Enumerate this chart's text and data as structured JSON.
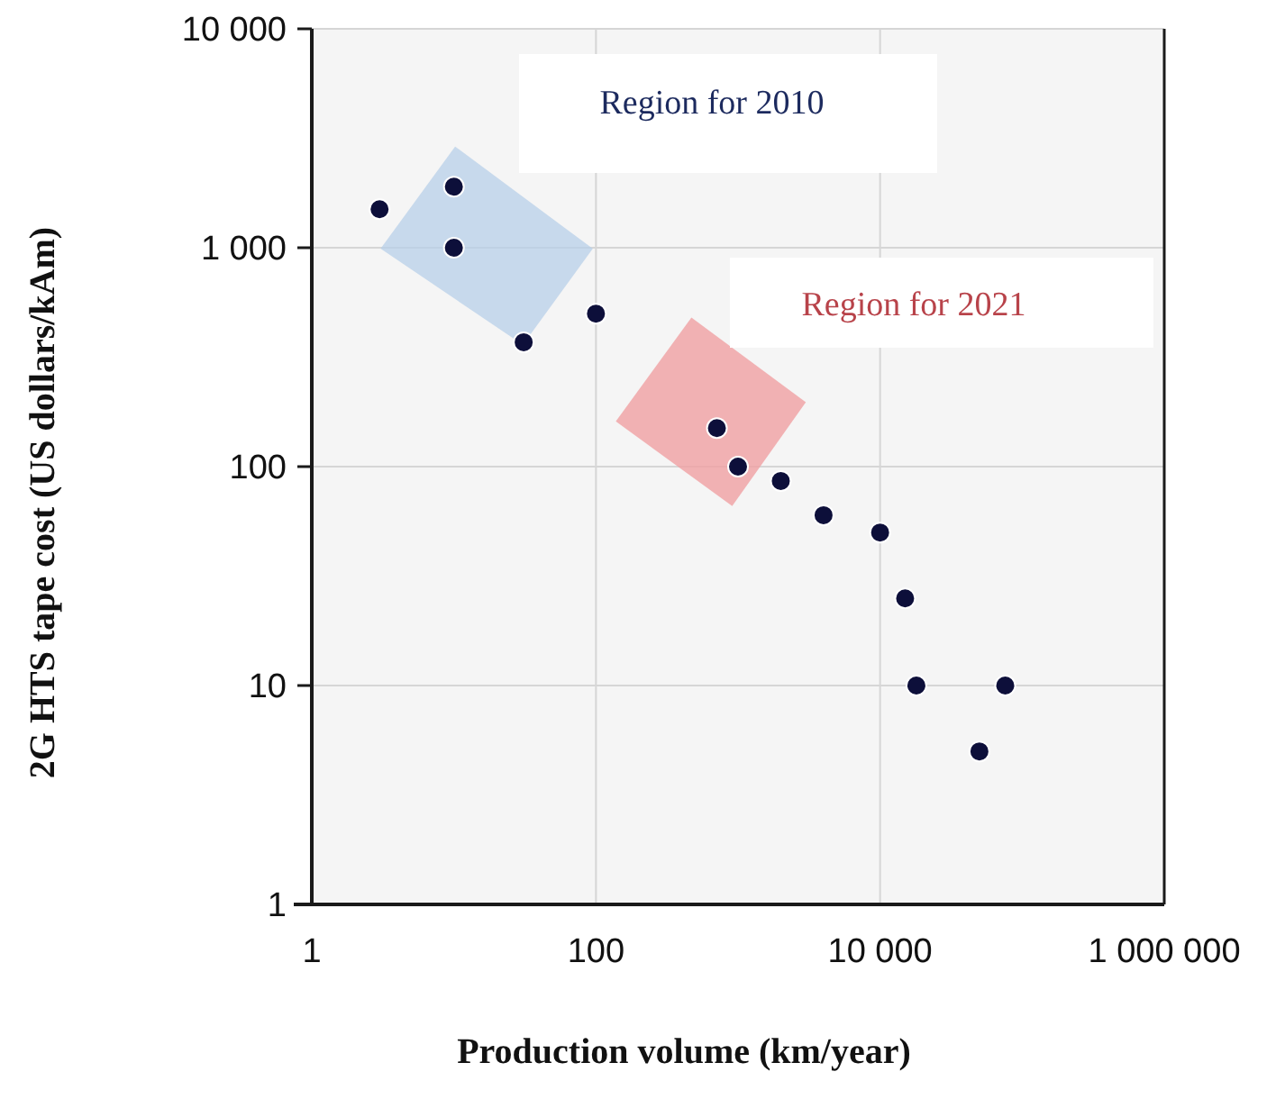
{
  "chart_data": {
    "type": "scatter",
    "xlabel": "Production volume (km/year)",
    "ylabel": "2G HTS tape cost (US dollars/kAm)",
    "x": [
      3,
      10,
      10,
      31,
      100,
      710,
      1000,
      2000,
      4000,
      10000,
      15000,
      18000,
      50000,
      76000
    ],
    "values": [
      1500,
      1900,
      1000,
      370,
      500,
      150,
      100,
      86,
      60,
      50,
      25,
      10,
      5,
      10
    ],
    "color": "#0d0f3a",
    "marker": "circle",
    "log": "xy",
    "grid": true,
    "xlim": [
      1,
      1000000
    ],
    "xticks": [
      1,
      100,
      {
        "value": 10000,
        "label": "10 000"
      },
      {
        "value": 1000000,
        "label": "1 000 000"
      }
    ],
    "ylim": [
      1,
      10000
    ],
    "yticks": [
      1,
      10,
      100,
      {
        "value": 1000,
        "label": "1 000"
      },
      {
        "value": 10000,
        "label": "10 000"
      }
    ],
    "annotations": [
      "Region for 2010",
      "Region for 2021"
    ]
  }
}
